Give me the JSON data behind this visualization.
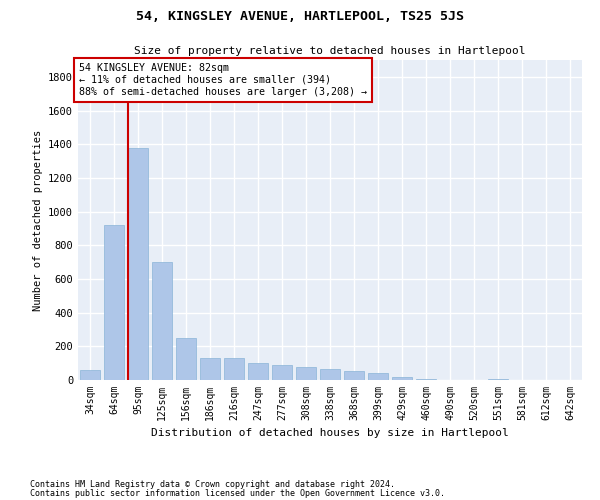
{
  "title": "54, KINGSLEY AVENUE, HARTLEPOOL, TS25 5JS",
  "subtitle": "Size of property relative to detached houses in Hartlepool",
  "xlabel": "Distribution of detached houses by size in Hartlepool",
  "ylabel": "Number of detached properties",
  "footnote1": "Contains HM Land Registry data © Crown copyright and database right 2024.",
  "footnote2": "Contains public sector information licensed under the Open Government Licence v3.0.",
  "categories": [
    "34sqm",
    "64sqm",
    "95sqm",
    "125sqm",
    "156sqm",
    "186sqm",
    "216sqm",
    "247sqm",
    "277sqm",
    "308sqm",
    "338sqm",
    "368sqm",
    "399sqm",
    "429sqm",
    "460sqm",
    "490sqm",
    "520sqm",
    "551sqm",
    "581sqm",
    "612sqm",
    "642sqm"
  ],
  "values": [
    60,
    920,
    1380,
    700,
    250,
    130,
    130,
    100,
    90,
    75,
    65,
    55,
    40,
    20,
    5,
    0,
    0,
    5,
    0,
    0,
    0
  ],
  "bar_color": "#aec6e8",
  "bar_edge_color": "#8ab4d8",
  "background_color": "#e8eef7",
  "grid_color": "#ffffff",
  "property_line_x": 1.58,
  "property_line_color": "#cc0000",
  "annotation_line1": "54 KINGSLEY AVENUE: 82sqm",
  "annotation_line2": "← 11% of detached houses are smaller (394)",
  "annotation_line3": "88% of semi-detached houses are larger (3,208) →",
  "annotation_box_color": "#ffffff",
  "annotation_box_edge": "#cc0000",
  "ylim": [
    0,
    1900
  ],
  "yticks": [
    0,
    200,
    400,
    600,
    800,
    1000,
    1200,
    1400,
    1600,
    1800
  ]
}
